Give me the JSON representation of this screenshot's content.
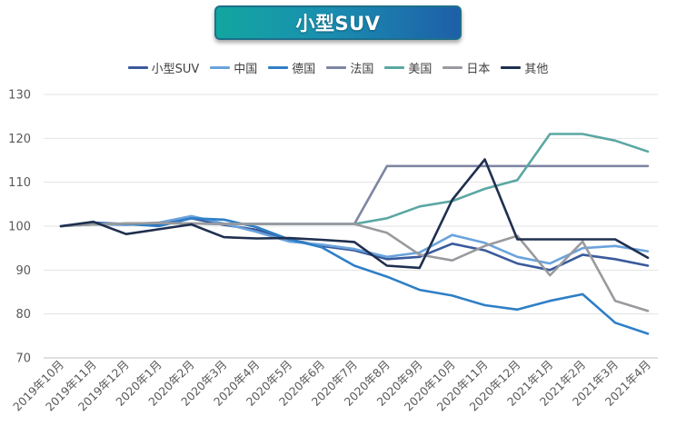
{
  "title": "小型SUV",
  "chart_data": {
    "type": "line",
    "title": "小型SUV",
    "xlabel": "",
    "ylabel": "",
    "ylim": [
      70,
      130
    ],
    "yticks": [
      70,
      80,
      90,
      100,
      110,
      120,
      130
    ],
    "grid": true,
    "legend_position": "top",
    "categories": [
      "2019年10月",
      "2019年11月",
      "2019年12月",
      "2020年1月",
      "2020年2月",
      "2020年3月",
      "2020年4月",
      "2020年5月",
      "2020年6月",
      "2020年7月",
      "2020年8月",
      "2020年9月",
      "2020年10月",
      "2020年11月",
      "2020年12月",
      "2021年1月",
      "2021年2月",
      "2021年3月",
      "2021年4月"
    ],
    "series": [
      {
        "name": "小型SUV",
        "color": "#3a5a9c",
        "values": [
          100,
          100.8,
          100.5,
          100.5,
          101.8,
          100.3,
          99.2,
          97,
          95.5,
          94.5,
          92.5,
          93,
          96,
          94.5,
          91.5,
          90,
          93.5,
          92.5,
          91
        ]
      },
      {
        "name": "中国",
        "color": "#6aa3dc",
        "values": [
          100,
          100.5,
          100.3,
          100.8,
          102.3,
          100.6,
          98.7,
          96.5,
          95.8,
          94.8,
          93,
          94,
          98,
          96.2,
          93,
          91.5,
          95,
          95.5,
          94.3
        ]
      },
      {
        "name": "德国",
        "color": "#2e7fc6",
        "values": [
          100,
          100.6,
          100.5,
          100,
          101.8,
          101.5,
          99.8,
          97,
          95.2,
          91,
          88.5,
          85.5,
          84.2,
          82,
          81,
          83,
          84.5,
          78,
          75.5
        ]
      },
      {
        "name": "法国",
        "color": "#7f86a3",
        "values": [
          100,
          100.4,
          100.6,
          100.7,
          100.6,
          100.5,
          100.5,
          100.5,
          100.5,
          100.5,
          113.7,
          113.7,
          113.7,
          113.7,
          113.7,
          113.7,
          113.7,
          113.7,
          113.7
        ]
      },
      {
        "name": "美国",
        "color": "#5aa7a3",
        "values": [
          100,
          100.4,
          100.6,
          100.7,
          100.6,
          100.5,
          100.5,
          100.5,
          100.5,
          100.5,
          101.8,
          104.5,
          105.7,
          108.5,
          110.5,
          121,
          121,
          119.5,
          117
        ]
      },
      {
        "name": "日本",
        "color": "#9a9a9e",
        "values": [
          100,
          100.4,
          100.6,
          100.7,
          100.6,
          100.5,
          100.5,
          100.5,
          100.5,
          100.5,
          98.5,
          93.5,
          92.2,
          95.5,
          97.8,
          88.8,
          96.5,
          83,
          80.7
        ]
      },
      {
        "name": "其他",
        "color": "#1f2f4f",
        "values": [
          100,
          101,
          98.2,
          99.3,
          100.4,
          97.5,
          97.2,
          97.3,
          96.9,
          96.4,
          91,
          90.5,
          106,
          115.2,
          97,
          97,
          97,
          97,
          92.8
        ]
      }
    ]
  }
}
